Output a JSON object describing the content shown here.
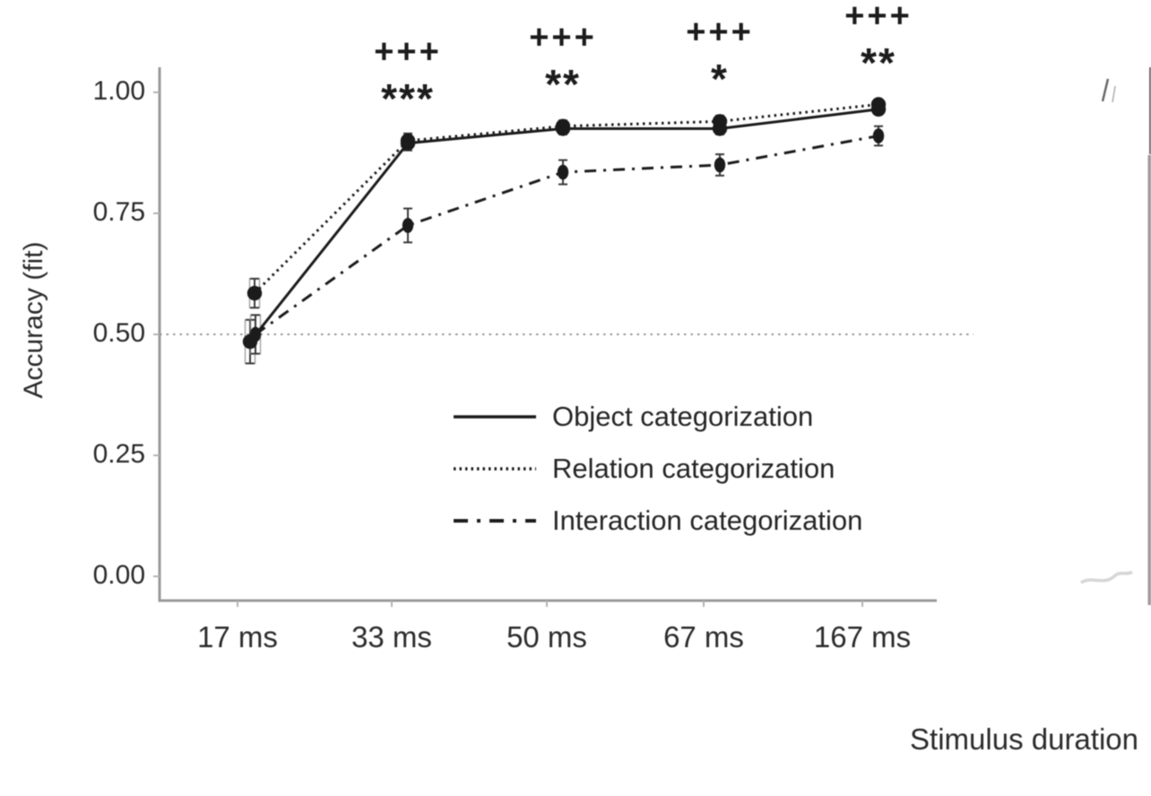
{
  "chart_data": {
    "type": "line",
    "title": "",
    "xlabel": "Stimulus duration",
    "ylabel": "Accuracy (fit)",
    "categories": [
      "17 ms",
      "33 ms",
      "50 ms",
      "67 ms",
      "167 ms"
    ],
    "x_values_ms": [
      17,
      33,
      50,
      67,
      167
    ],
    "ylim": [
      0.0,
      1.0
    ],
    "yticks": [
      {
        "label": "1.00",
        "value": 1.0
      },
      {
        "label": "0.75",
        "value": 0.75
      },
      {
        "label": "0.50",
        "value": 0.5
      },
      {
        "label": "0.25",
        "value": 0.25
      },
      {
        "label": "0.00",
        "value": 0.0
      }
    ],
    "reference_line_y": 0.5,
    "grid": "off",
    "legend_position": "inside-center-bottom",
    "series": [
      {
        "name": "Object categorization",
        "linestyle": "solid",
        "marker": "filled-circle",
        "values": [
          0.485,
          0.895,
          0.925,
          0.925,
          0.965
        ],
        "errors": [
          0.045,
          0.015,
          0.012,
          0.012,
          0.01
        ]
      },
      {
        "name": "Relation categorization",
        "linestyle": "dotted",
        "marker": "filled-circle",
        "values": [
          0.585,
          0.9,
          0.93,
          0.94,
          0.975
        ],
        "errors": [
          0.03,
          0.015,
          0.012,
          0.012,
          0.01
        ]
      },
      {
        "name": "Interaction categorization",
        "linestyle": "dashdot",
        "marker": "filled-circle",
        "values": [
          0.5,
          0.725,
          0.835,
          0.85,
          0.91
        ],
        "errors": [
          0.04,
          0.035,
          0.025,
          0.022,
          0.02
        ]
      }
    ],
    "annotations": [
      {
        "category": "33 ms",
        "plus": "+++",
        "stars": "***"
      },
      {
        "category": "50 ms",
        "plus": "+++",
        "stars": "**"
      },
      {
        "category": "67 ms",
        "plus": "+++",
        "stars": "*"
      },
      {
        "category": "167 ms",
        "plus": "+++",
        "stars": "**"
      }
    ],
    "colors": {
      "line": "#1c1c1c",
      "marker": "#1b1b1b",
      "axis": "#9a9a9a",
      "tick": "#b3b3b3",
      "errorbar": "#3a3a3a",
      "reference": "#8a8a8a",
      "text": "#2b2b2b"
    }
  }
}
